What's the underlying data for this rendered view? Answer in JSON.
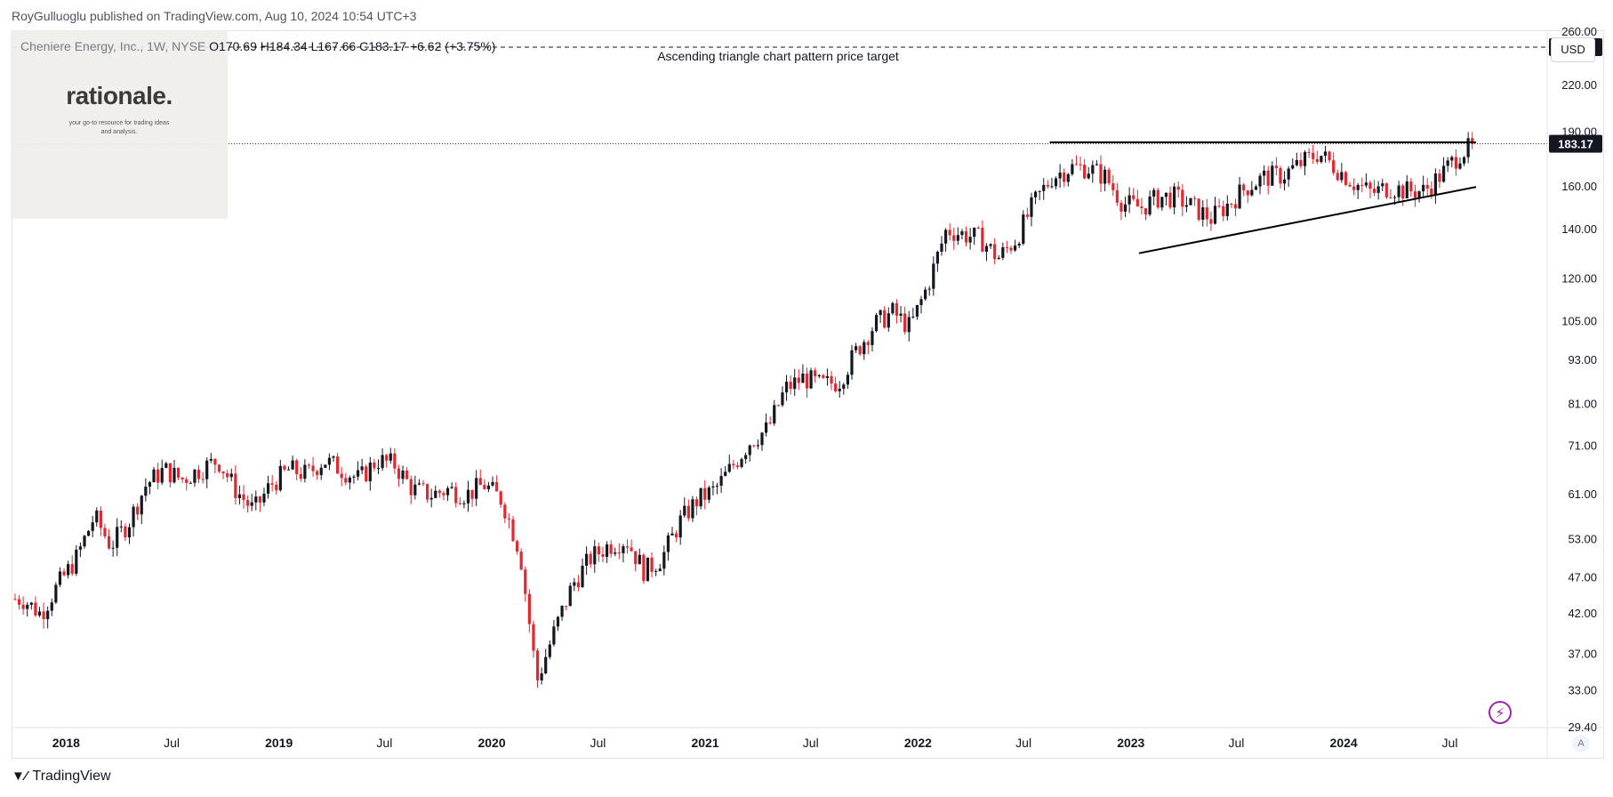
{
  "header": {
    "publisher": "RoyGulluoglu published on TradingView.com, Aug 10, 2024 10:54 UTC+3"
  },
  "legend": {
    "symbol": "Cheniere Energy, Inc., 1W, NYSE",
    "open": "O170.69",
    "high": "H184.34",
    "low": "L167.66",
    "close": "C183.17",
    "change": "+6.62 (+3.75%)"
  },
  "logo": {
    "name": "rationale.",
    "tagline": "your go-to resource for trading ideas and analysis."
  },
  "currency_button": "USD",
  "footer": {
    "brand": "TradingView"
  },
  "auto_scale_button": "A",
  "icons": {
    "brand": "tradingview-logo-icon",
    "lightning": "lightning-icon"
  },
  "colors": {
    "up": "#131722",
    "down": "#e5262e",
    "price_label_bg": "#131722",
    "target_label_bg": "#131722"
  },
  "chart_data": {
    "type": "candlestick",
    "interval": "1W",
    "scale": "log",
    "currency": "USD",
    "ylim": [
      29.4,
      260
    ],
    "y_ticks": [
      "260.00",
      "220.00",
      "190.00",
      "160.00",
      "140.00",
      "120.00",
      "105.00",
      "93.00",
      "81.00",
      "71.00",
      "61.00",
      "53.00",
      "47.00",
      "42.00",
      "37.00",
      "33.00",
      "29.40"
    ],
    "x_ticks": [
      "2018",
      "Jul",
      "2019",
      "Jul",
      "2020",
      "Jul",
      "2021",
      "Jul",
      "2022",
      "Jul",
      "2023",
      "Jul",
      "2024",
      "Jul"
    ],
    "price_path": [
      [
        "2017-10",
        44
      ],
      [
        "2017-11",
        42
      ],
      [
        "2017-12",
        46
      ],
      [
        "2018-01",
        50
      ],
      [
        "2018-02",
        57
      ],
      [
        "2018-03",
        52
      ],
      [
        "2018-04",
        56
      ],
      [
        "2018-05",
        63
      ],
      [
        "2018-06",
        66
      ],
      [
        "2018-07",
        64
      ],
      [
        "2018-08",
        66
      ],
      [
        "2018-09",
        68
      ],
      [
        "2018-10",
        62
      ],
      [
        "2018-11",
        58
      ],
      [
        "2018-12",
        63
      ],
      [
        "2019-01",
        66
      ],
      [
        "2019-02",
        65
      ],
      [
        "2019-03",
        68
      ],
      [
        "2019-04",
        66
      ],
      [
        "2019-05",
        64
      ],
      [
        "2019-06",
        68
      ],
      [
        "2019-07",
        67
      ],
      [
        "2019-08",
        62
      ],
      [
        "2019-09",
        61
      ],
      [
        "2019-10",
        62
      ],
      [
        "2019-11",
        61
      ],
      [
        "2019-12",
        63
      ],
      [
        "2020-01",
        60
      ],
      [
        "2020-02",
        51
      ],
      [
        "2020-03",
        34
      ],
      [
        "2020-04",
        40
      ],
      [
        "2020-05",
        46
      ],
      [
        "2020-06",
        50
      ],
      [
        "2020-07",
        52
      ],
      [
        "2020-08",
        53
      ],
      [
        "2020-09",
        48
      ],
      [
        "2020-10",
        50
      ],
      [
        "2020-11",
        56
      ],
      [
        "2020-12",
        60
      ],
      [
        "2021-01",
        62
      ],
      [
        "2021-02",
        67
      ],
      [
        "2021-03",
        72
      ],
      [
        "2021-04",
        75
      ],
      [
        "2021-05",
        85
      ],
      [
        "2021-06",
        88
      ],
      [
        "2021-07",
        86
      ],
      [
        "2021-08",
        87
      ],
      [
        "2021-09",
        96
      ],
      [
        "2021-10",
        104
      ],
      [
        "2021-11",
        108
      ],
      [
        "2021-12",
        103
      ],
      [
        "2022-01",
        118
      ],
      [
        "2022-02",
        140
      ],
      [
        "2022-03",
        138
      ],
      [
        "2022-04",
        136
      ],
      [
        "2022-05",
        128
      ],
      [
        "2022-06",
        136
      ],
      [
        "2022-07",
        152
      ],
      [
        "2022-08",
        165
      ],
      [
        "2022-09",
        170
      ],
      [
        "2022-10",
        170
      ],
      [
        "2022-11",
        165
      ],
      [
        "2022-12",
        152
      ],
      [
        "2023-01",
        150
      ],
      [
        "2023-02",
        155
      ],
      [
        "2023-03",
        155
      ],
      [
        "2023-04",
        150
      ],
      [
        "2023-05",
        145
      ],
      [
        "2023-06",
        152
      ],
      [
        "2023-07",
        160
      ],
      [
        "2023-08",
        165
      ],
      [
        "2023-09",
        166
      ],
      [
        "2023-10",
        172
      ],
      [
        "2023-11",
        178
      ],
      [
        "2023-12",
        170
      ],
      [
        "2024-01",
        162
      ],
      [
        "2024-02",
        157
      ],
      [
        "2024-03",
        160
      ],
      [
        "2024-04",
        158
      ],
      [
        "2024-05",
        158
      ],
      [
        "2024-06",
        167
      ],
      [
        "2024-07",
        178
      ],
      [
        "2024-08",
        183.17
      ]
    ],
    "last_price": "183.17",
    "target_price": "248.00",
    "annotations": {
      "target_label": "Ascending triangle chart pattern price target",
      "resistance": {
        "price": 184,
        "from": "2022-08",
        "to": "2024-08"
      },
      "support": {
        "from": [
          "2023-01",
          130
        ],
        "to": [
          "2024-08",
          160
        ]
      }
    }
  }
}
